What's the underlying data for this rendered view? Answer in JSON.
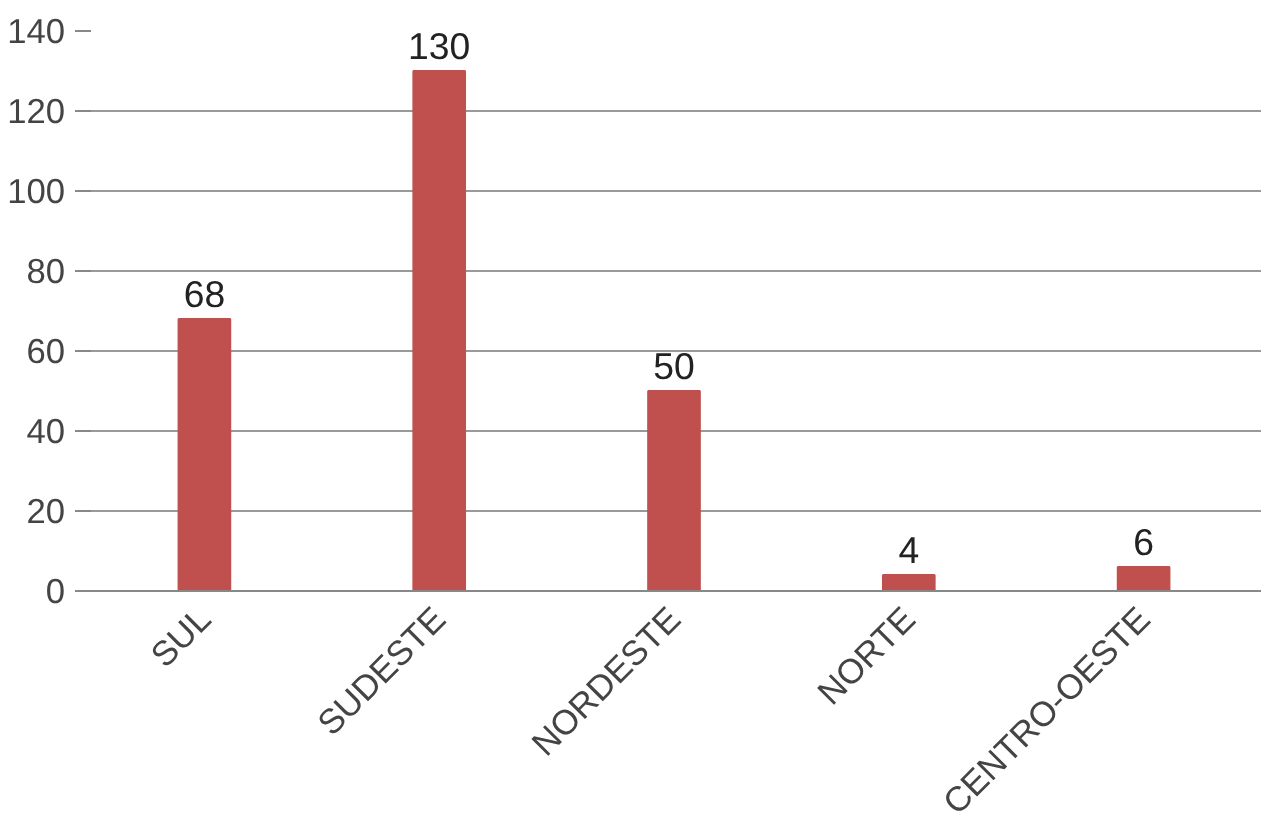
{
  "chart_data": {
    "type": "bar",
    "categories": [
      "SUL",
      "SUDESTE",
      "NORDESTE",
      "NORTE",
      "CENTRO-OESTE"
    ],
    "values": [
      68,
      130,
      50,
      4,
      6
    ],
    "color": "#c0504d",
    "ylim": [
      0,
      140
    ],
    "yticks": [
      0,
      20,
      40,
      60,
      80,
      100,
      120,
      140
    ],
    "grid": "y",
    "data_labels": true
  }
}
